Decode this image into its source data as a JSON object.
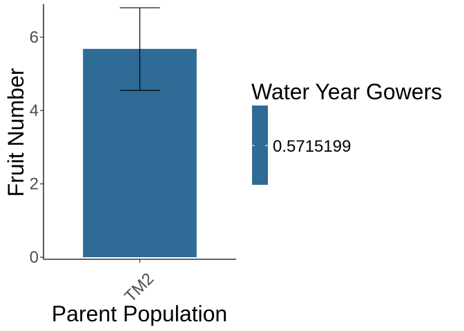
{
  "chart_data": {
    "type": "bar",
    "categories": [
      "TM2"
    ],
    "values": [
      5.68
    ],
    "error_bars": [
      {
        "low": 4.55,
        "high": 6.8
      }
    ],
    "xlabel": "Parent Population",
    "ylabel": "Fruit Number",
    "ylim": [
      0,
      6.9
    ],
    "yticks": [
      0,
      2,
      4,
      6
    ],
    "bar_color": "#2e6b96",
    "grid": false,
    "legend": {
      "title": "Water Year Gowers",
      "placement": "right",
      "labels": [
        "0.5715199"
      ],
      "color": "#2e6b96"
    }
  }
}
